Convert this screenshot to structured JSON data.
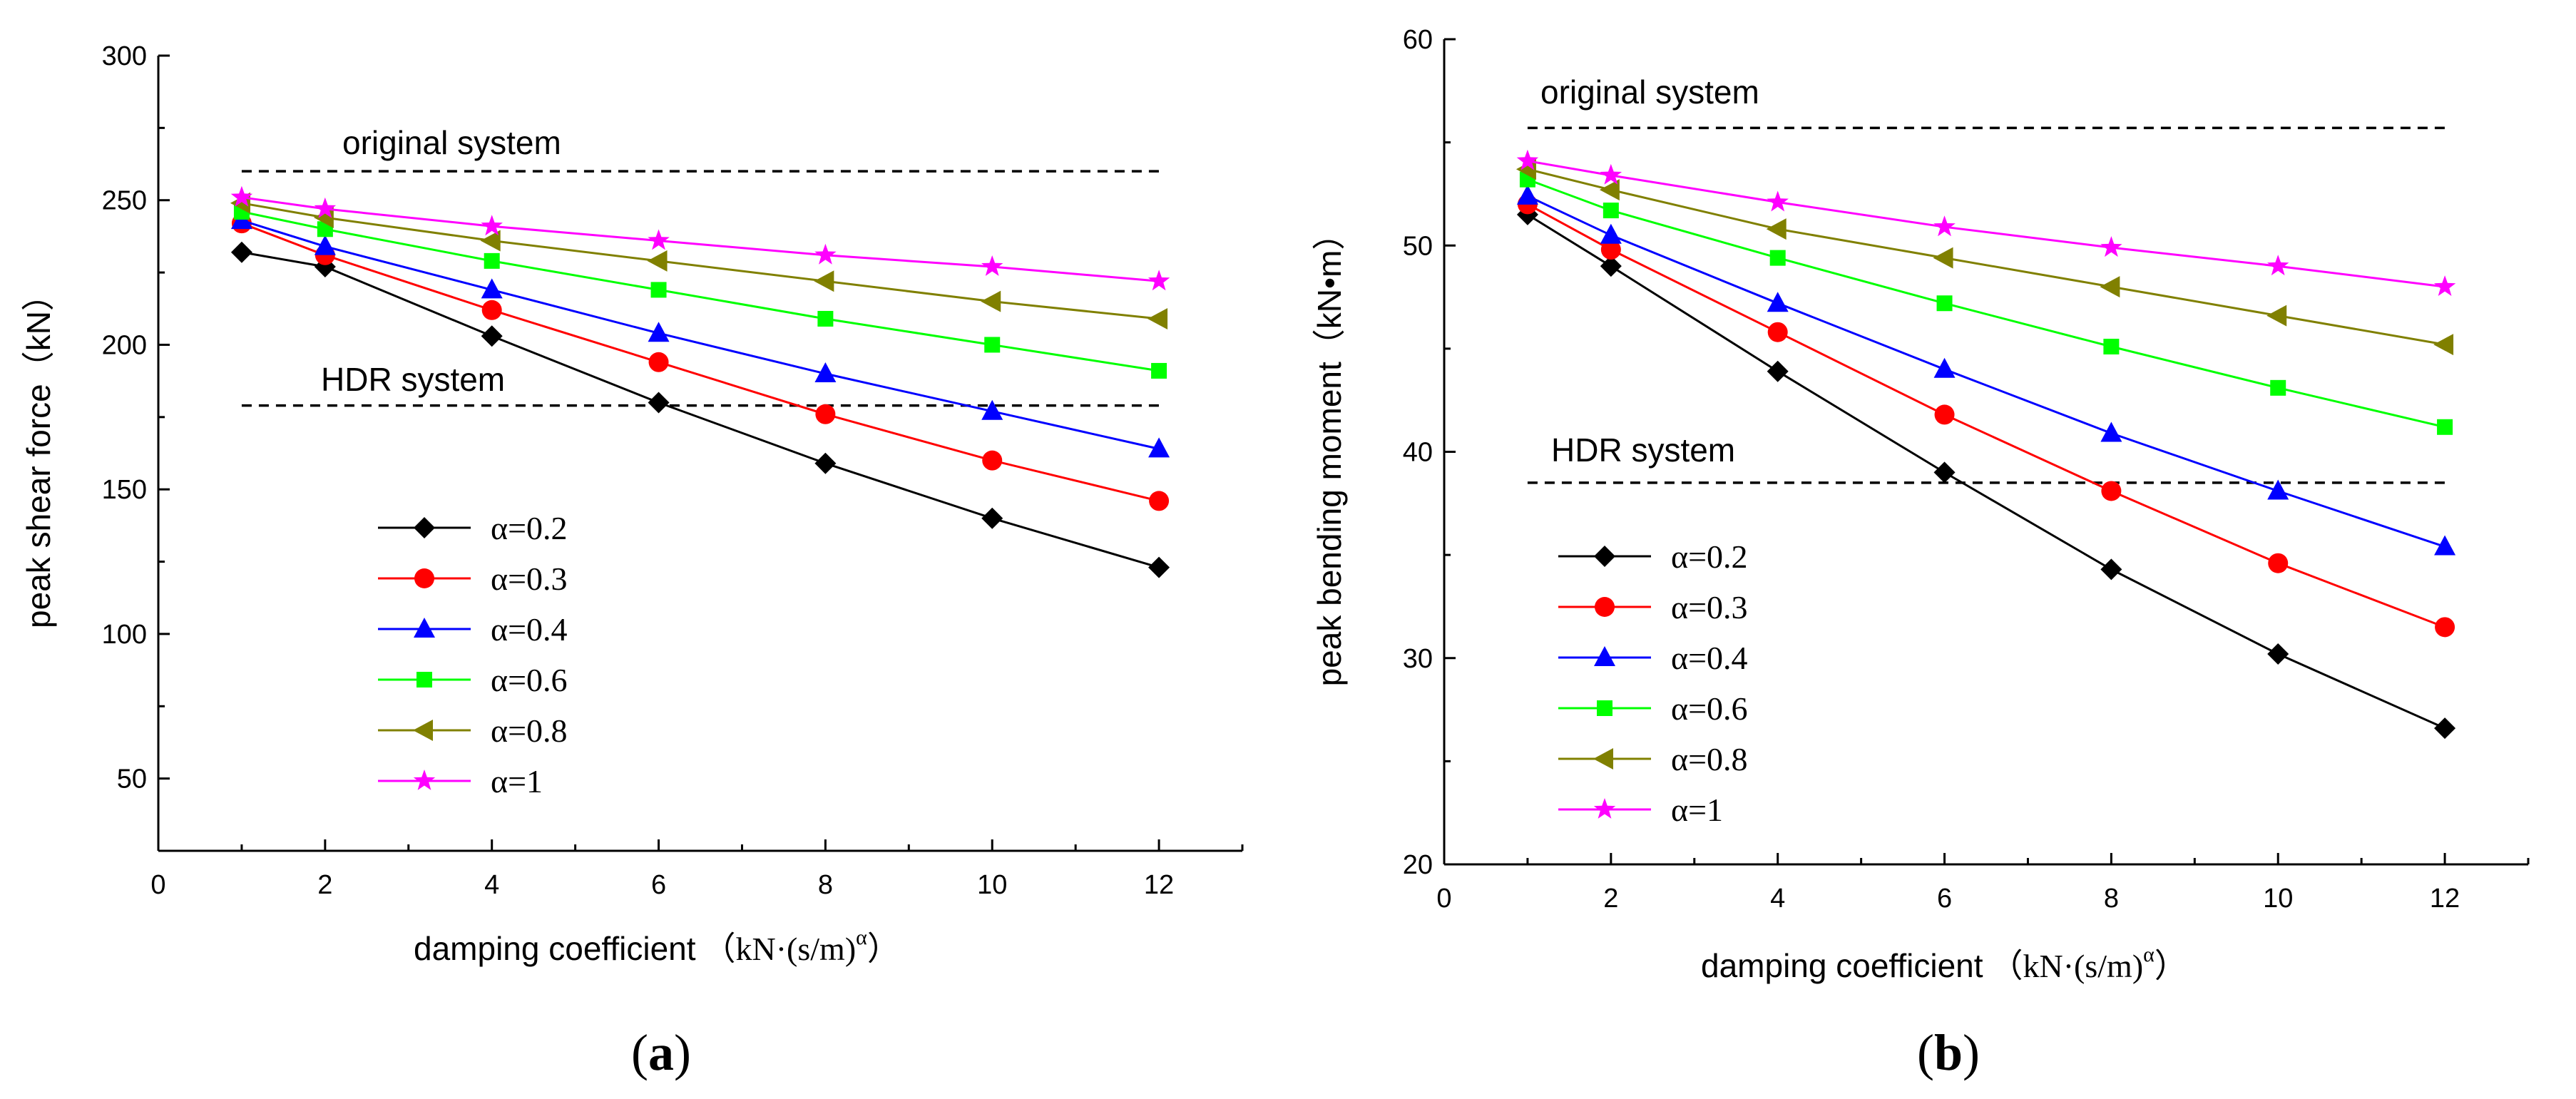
{
  "chart_data": [
    {
      "type": "line",
      "panel": "a",
      "panel_label": "a",
      "xlabel": "damping coefficient",
      "xlabel_unit": "kN·(s/m)",
      "xlabel_sup": "α",
      "ylabel": "peak shear force（kN）",
      "xlim": [
        0,
        13
      ],
      "ylim": [
        25,
        300
      ],
      "xticks": [
        0,
        2,
        4,
        6,
        8,
        10,
        12
      ],
      "yticks": [
        50,
        100,
        150,
        200,
        250,
        300
      ],
      "x": [
        1,
        2,
        4,
        6,
        8,
        10,
        12
      ],
      "series": [
        {
          "name": "α=0.2",
          "color": "#000000",
          "marker": "diamond",
          "values": [
            232,
            227,
            203,
            180,
            159,
            140,
            123
          ]
        },
        {
          "name": "α=0.3",
          "color": "#ff0000",
          "marker": "circle",
          "values": [
            242,
            231,
            212,
            194,
            176,
            160,
            146
          ]
        },
        {
          "name": "α=0.4",
          "color": "#0000ff",
          "marker": "triangle-up",
          "values": [
            243,
            234,
            219,
            204,
            190,
            177,
            164
          ]
        },
        {
          "name": "α=0.6",
          "color": "#00ff00",
          "marker": "square",
          "values": [
            246,
            240,
            229,
            219,
            209,
            200,
            191
          ]
        },
        {
          "name": "α=0.8",
          "color": "#808000",
          "marker": "triangle-left",
          "values": [
            249,
            244,
            236,
            229,
            222,
            215,
            209
          ]
        },
        {
          "name": "α=1",
          "color": "#ff00ff",
          "marker": "star",
          "values": [
            251,
            247,
            241,
            236,
            231,
            227,
            222
          ]
        }
      ],
      "references": [
        {
          "name": "original system",
          "value": 260,
          "x_range": [
            1,
            12
          ]
        },
        {
          "name": "HDR system",
          "value": 179,
          "x_range": [
            1,
            12
          ]
        }
      ]
    },
    {
      "type": "line",
      "panel": "b",
      "panel_label": "b",
      "xlabel": "damping coefficient",
      "xlabel_unit": "kN·(s/m)",
      "xlabel_sup": "α",
      "ylabel": "peak bending moment（kN•m）",
      "xlim": [
        0,
        13
      ],
      "ylim": [
        20,
        60
      ],
      "xticks": [
        0,
        2,
        4,
        6,
        8,
        10,
        12
      ],
      "yticks": [
        20,
        30,
        40,
        50,
        60
      ],
      "x": [
        1,
        2,
        4,
        6,
        8,
        10,
        12
      ],
      "series": [
        {
          "name": "α=0.2",
          "color": "#000000",
          "marker": "diamond",
          "values": [
            51.5,
            49.0,
            43.9,
            39.0,
            34.3,
            30.2,
            26.6
          ]
        },
        {
          "name": "α=0.3",
          "color": "#ff0000",
          "marker": "circle",
          "values": [
            52.0,
            49.8,
            45.8,
            41.8,
            38.1,
            34.6,
            31.5
          ]
        },
        {
          "name": "α=0.4",
          "color": "#0000ff",
          "marker": "triangle-up",
          "values": [
            52.4,
            50.5,
            47.2,
            44.0,
            40.9,
            38.1,
            35.4
          ]
        },
        {
          "name": "α=0.6",
          "color": "#00ff00",
          "marker": "square",
          "values": [
            53.2,
            51.7,
            49.4,
            47.2,
            45.1,
            43.1,
            41.2
          ]
        },
        {
          "name": "α=0.8",
          "color": "#808000",
          "marker": "triangle-left",
          "values": [
            53.7,
            52.7,
            50.8,
            49.4,
            48.0,
            46.6,
            45.2
          ]
        },
        {
          "name": "α=1",
          "color": "#ff00ff",
          "marker": "star",
          "values": [
            54.1,
            53.4,
            52.1,
            50.9,
            49.9,
            49.0,
            48.0
          ]
        }
      ],
      "references": [
        {
          "name": "original system",
          "value": 55.7,
          "x_range": [
            1,
            12
          ]
        },
        {
          "name": "HDR system",
          "value": 38.5,
          "x_range": [
            1,
            12
          ]
        }
      ]
    }
  ]
}
